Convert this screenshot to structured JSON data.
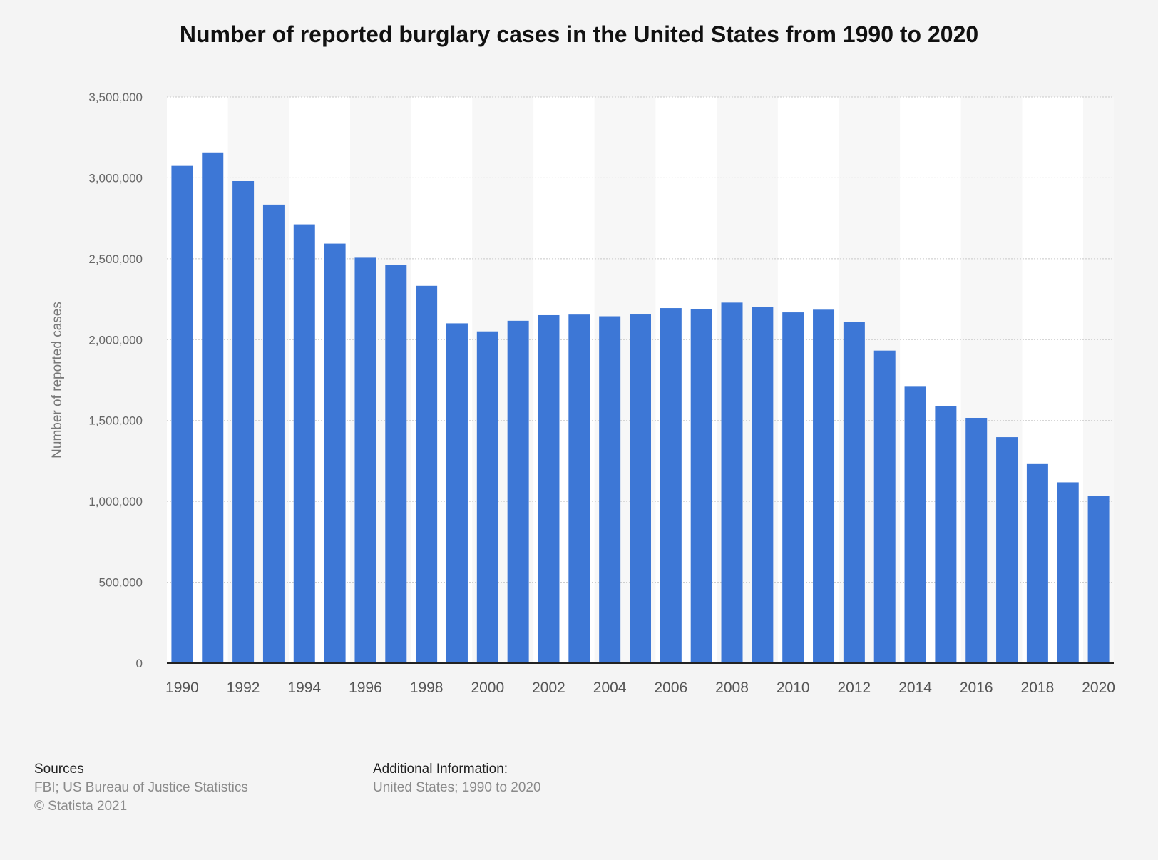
{
  "chart_data": {
    "type": "bar",
    "title": "Number of reported burglary cases in the United States from 1990 to 2020",
    "xlabel": "",
    "ylabel": "Number of reported cases",
    "ylim": [
      0,
      3500000
    ],
    "yticks": [
      0,
      500000,
      1000000,
      1500000,
      2000000,
      2500000,
      3000000,
      3500000
    ],
    "ytick_labels": [
      "0",
      "500,000",
      "1,000,000",
      "1,500,000",
      "2,000,000",
      "2,500,000",
      "3,000,000",
      "3,500,000"
    ],
    "categories": [
      "1990",
      "1991",
      "1992",
      "1993",
      "1994",
      "1995",
      "1996",
      "1997",
      "1998",
      "1999",
      "2000",
      "2001",
      "2002",
      "2003",
      "2004",
      "2005",
      "2006",
      "2007",
      "2008",
      "2009",
      "2010",
      "2011",
      "2012",
      "2013",
      "2014",
      "2015",
      "2016",
      "2017",
      "2018",
      "2019",
      "2020"
    ],
    "xtick_labels": [
      "1990",
      "1992",
      "1994",
      "1996",
      "1998",
      "2000",
      "2002",
      "2004",
      "2006",
      "2008",
      "2010",
      "2012",
      "2014",
      "2016",
      "2018",
      "2020"
    ],
    "values": [
      3073909,
      3157150,
      2979884,
      2834808,
      2712774,
      2593784,
      2506400,
      2460526,
      2332735,
      2100739,
      2050992,
      2116531,
      2151252,
      2154834,
      2144446,
      2155448,
      2194993,
      2190198,
      2228887,
      2203313,
      2168459,
      2185140,
      2109932,
      1932139,
      1713153,
      1587564,
      1516405,
      1397045,
      1235013,
      1117696,
      1035314
    ],
    "bar_color": "#3d77d6",
    "gridlines": true
  },
  "footer": {
    "sources_heading": "Sources",
    "sources_line1": "FBI; US Bureau of Justice Statistics",
    "sources_line2": "© Statista 2021",
    "additional_heading": "Additional Information:",
    "additional_line1": "United States; 1990 to 2020"
  }
}
